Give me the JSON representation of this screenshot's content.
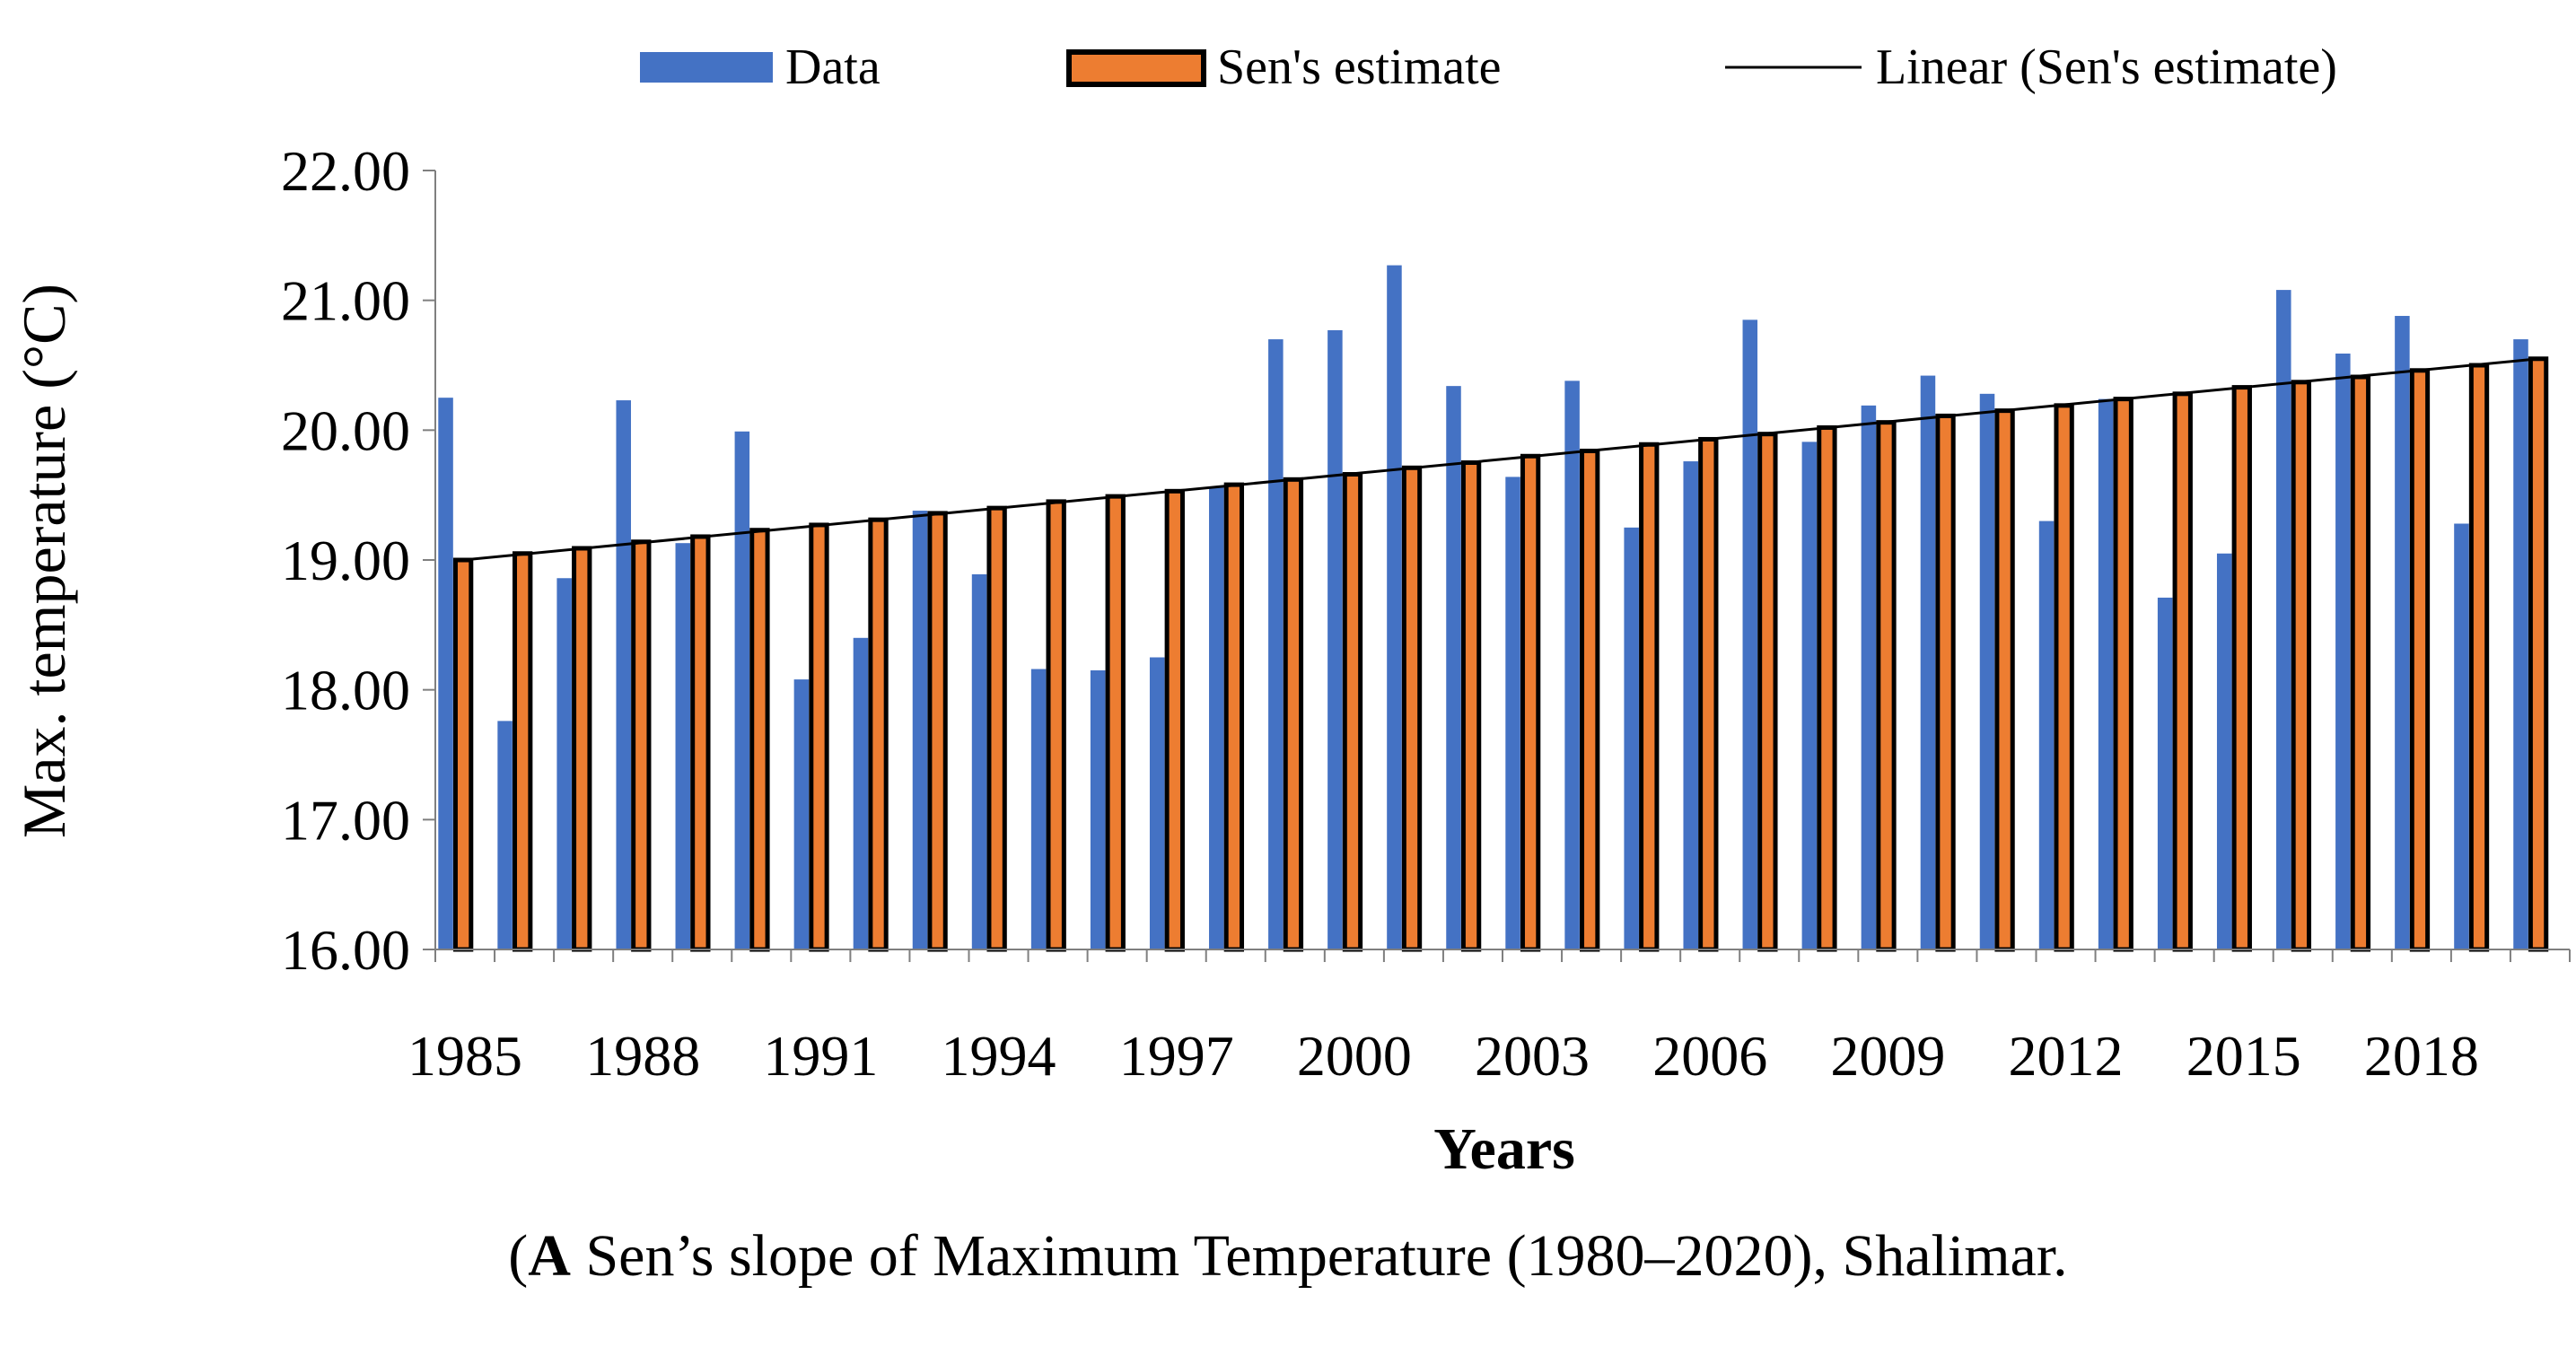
{
  "colors": {
    "data_bar": "#4472C4",
    "sen_bar_fill": "#ED7D31",
    "sen_bar_edge": "#000000",
    "trend_line": "#000000",
    "axis": "#7f7f7f"
  },
  "caption": {
    "letter": "A",
    "text": " Sen’s slope of Maximum Temperature (1980–2020), Shalimar."
  },
  "chart_data": {
    "type": "bar",
    "title": "",
    "xlabel": "Years",
    "ylabel": "Max. temperature (°C)",
    "ylim": [
      16.0,
      22.0
    ],
    "yticks": [
      "16.00",
      "17.00",
      "18.00",
      "19.00",
      "20.00",
      "21.00",
      "22.00"
    ],
    "legend": [
      "Data",
      "Sen's estimate",
      "Linear (Sen's estimate)"
    ],
    "legend_position": "top",
    "categories": [
      1985,
      1986,
      1987,
      1988,
      1989,
      1990,
      1991,
      1992,
      1993,
      1994,
      1995,
      1996,
      1997,
      1998,
      1999,
      2000,
      2001,
      2002,
      2003,
      2004,
      2005,
      2006,
      2007,
      2008,
      2009,
      2010,
      2011,
      2012,
      2013,
      2014,
      2015,
      2016,
      2017,
      2018,
      2019,
      2020
    ],
    "xtick_labels": [
      "1985",
      "1988",
      "1991",
      "1994",
      "1997",
      "2000",
      "2003",
      "2006",
      "2009",
      "2012",
      "2015",
      "2018"
    ],
    "xtick_every": 3,
    "series": [
      {
        "name": "Data",
        "values": [
          20.25,
          17.76,
          18.86,
          20.23,
          19.13,
          19.99,
          18.08,
          18.4,
          19.38,
          18.89,
          18.16,
          18.15,
          18.25,
          19.56,
          20.7,
          20.77,
          21.27,
          20.34,
          19.64,
          20.38,
          19.25,
          19.76,
          20.85,
          19.91,
          20.19,
          20.42,
          20.28,
          19.3,
          20.24,
          18.71,
          19.05,
          21.08,
          20.59,
          20.88,
          19.28,
          20.7
        ]
      },
      {
        "name": "Sen's estimate",
        "values": [
          19.0,
          19.05,
          19.09,
          19.14,
          19.18,
          19.23,
          19.27,
          19.31,
          19.36,
          19.4,
          19.45,
          19.49,
          19.53,
          19.58,
          19.62,
          19.66,
          19.71,
          19.75,
          19.8,
          19.84,
          19.89,
          19.93,
          19.97,
          20.02,
          20.06,
          20.11,
          20.15,
          20.19,
          20.24,
          20.28,
          20.33,
          20.37,
          20.41,
          20.46,
          20.5,
          20.55
        ]
      }
    ],
    "trendline": {
      "name": "Linear (Sen's estimate)",
      "start": 19.0,
      "end": 20.55
    }
  }
}
